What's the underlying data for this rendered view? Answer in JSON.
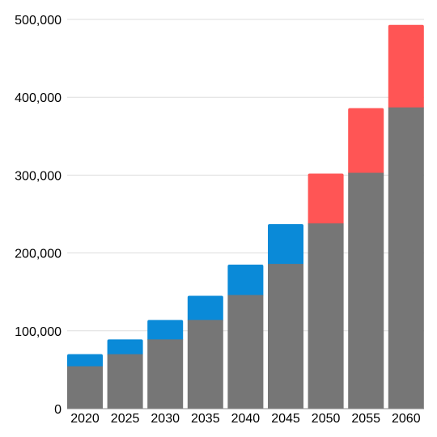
{
  "chart_data": {
    "type": "bar",
    "stacked": true,
    "title": "",
    "xlabel": "",
    "ylabel": "",
    "categories": [
      "2020",
      "2025",
      "2030",
      "2035",
      "2040",
      "2045",
      "2050",
      "2055",
      "2060"
    ],
    "ylim": [
      0,
      500000
    ],
    "yticks": [
      0,
      100000,
      200000,
      300000,
      400000,
      500000
    ],
    "ytick_labels": [
      "0",
      "100,000",
      "200,000",
      "300,000",
      "400,000",
      "500,000"
    ],
    "grid": true,
    "legend": "none",
    "series": [
      {
        "color": "#767676",
        "values": [
          54500,
          70000,
          89000,
          114000,
          146000,
          186000,
          238000,
          303000,
          387000
        ]
      },
      {
        "color_by_category": [
          "#0a8ad8",
          "#0a8ad8",
          "#0a8ad8",
          "#0a8ad8",
          "#0a8ad8",
          "#0a8ad8",
          "#ff5555",
          "#ff5555",
          "#ff5555"
        ],
        "values": [
          15500,
          19000,
          25000,
          31000,
          39000,
          51000,
          64000,
          83000,
          106000
        ]
      }
    ]
  }
}
